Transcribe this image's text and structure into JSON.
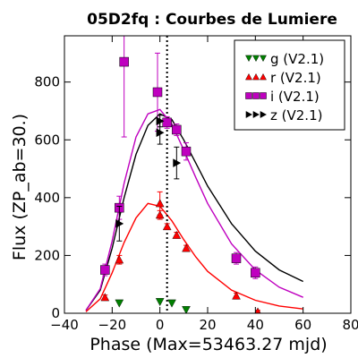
{
  "chart_data": {
    "type": "scatter",
    "title": "05D2fq : Courbes de Lumiere",
    "xlabel": "Phase (Max=53463.27 mjd)",
    "ylabel": "Flux (ZP_ab=30.)",
    "xlim": [
      -40,
      80
    ],
    "ylim": [
      0,
      960
    ],
    "x_ticks": [
      -40,
      -20,
      0,
      20,
      40,
      60,
      80
    ],
    "x_tick_labels": [
      "−40",
      "−20",
      "0",
      "20",
      "40",
      "60",
      "80"
    ],
    "y_ticks": [
      0,
      200,
      400,
      600,
      800
    ],
    "y_tick_labels": [
      "0",
      "200",
      "400",
      "600",
      "800"
    ],
    "grid": false,
    "legend_position": "top-right",
    "vertical_line_x": 3,
    "series": [
      {
        "name": "g (V2.1)",
        "color": "#008000",
        "marker": "triangle-down",
        "points": [
          {
            "x": -17,
            "y": 35,
            "err": 0
          },
          {
            "x": 0,
            "y": 40,
            "err": 0
          },
          {
            "x": 5,
            "y": 35,
            "err": 0
          },
          {
            "x": 11,
            "y": 12,
            "err": 0
          }
        ]
      },
      {
        "name": "r (V2.1)",
        "color": "#ff0000",
        "marker": "triangle-up",
        "points": [
          {
            "x": -23,
            "y": 55,
            "err": 8
          },
          {
            "x": -17,
            "y": 185,
            "err": 15
          },
          {
            "x": 0,
            "y": 380,
            "err": 40
          },
          {
            "x": 0,
            "y": 340,
            "err": 15
          },
          {
            "x": 3,
            "y": 300,
            "err": 10
          },
          {
            "x": 7,
            "y": 270,
            "err": 10
          },
          {
            "x": 11,
            "y": 225,
            "err": 10
          },
          {
            "x": 32,
            "y": 60,
            "err": 10
          },
          {
            "x": 41,
            "y": 5,
            "err": 5
          }
        ]
      },
      {
        "name": "i (V2.1)",
        "color": "#bf00bf",
        "marker": "square",
        "points": [
          {
            "x": -23,
            "y": 150,
            "err": 20
          },
          {
            "x": -17,
            "y": 365,
            "err": 40
          },
          {
            "x": -15,
            "y": 870,
            "err": 260
          },
          {
            "x": -1,
            "y": 765,
            "err": 135
          },
          {
            "x": 3,
            "y": 660,
            "err": 20
          },
          {
            "x": 7,
            "y": 635,
            "err": 20
          },
          {
            "x": 11,
            "y": 560,
            "err": 30
          },
          {
            "x": 32,
            "y": 190,
            "err": 20
          },
          {
            "x": 40,
            "y": 140,
            "err": 20
          }
        ]
      },
      {
        "name": "z (V2.1)",
        "color": "#000000",
        "marker": "triangle-right",
        "points": [
          {
            "x": -17,
            "y": 310,
            "err": 60
          },
          {
            "x": 0,
            "y": 665,
            "err": 20
          },
          {
            "x": 0,
            "y": 625,
            "err": 40
          },
          {
            "x": 7,
            "y": 520,
            "err": 55
          }
        ]
      }
    ],
    "curves": [
      {
        "color": "#000000",
        "x": [
          -31,
          -25,
          -20,
          -15,
          -10,
          -5,
          0,
          5,
          10,
          15,
          20,
          30,
          40,
          50,
          60
        ],
        "y": [
          10,
          80,
          225,
          400,
          550,
          650,
          690,
          670,
          600,
          520,
          440,
          310,
          215,
          150,
          110
        ]
      },
      {
        "color": "#bf00bf",
        "x": [
          -31,
          -25,
          -20,
          -15,
          -10,
          -5,
          0,
          5,
          10,
          15,
          20,
          30,
          40,
          50,
          60
        ],
        "y": [
          10,
          85,
          250,
          450,
          610,
          690,
          705,
          655,
          565,
          470,
          380,
          240,
          150,
          90,
          55
        ]
      },
      {
        "color": "#ff0000",
        "x": [
          -31,
          -25,
          -20,
          -15,
          -10,
          -5,
          0,
          5,
          10,
          15,
          20,
          30,
          40,
          50,
          60
        ],
        "y": [
          5,
          50,
          140,
          245,
          330,
          380,
          370,
          320,
          255,
          195,
          145,
          80,
          45,
          25,
          15
        ]
      }
    ]
  }
}
